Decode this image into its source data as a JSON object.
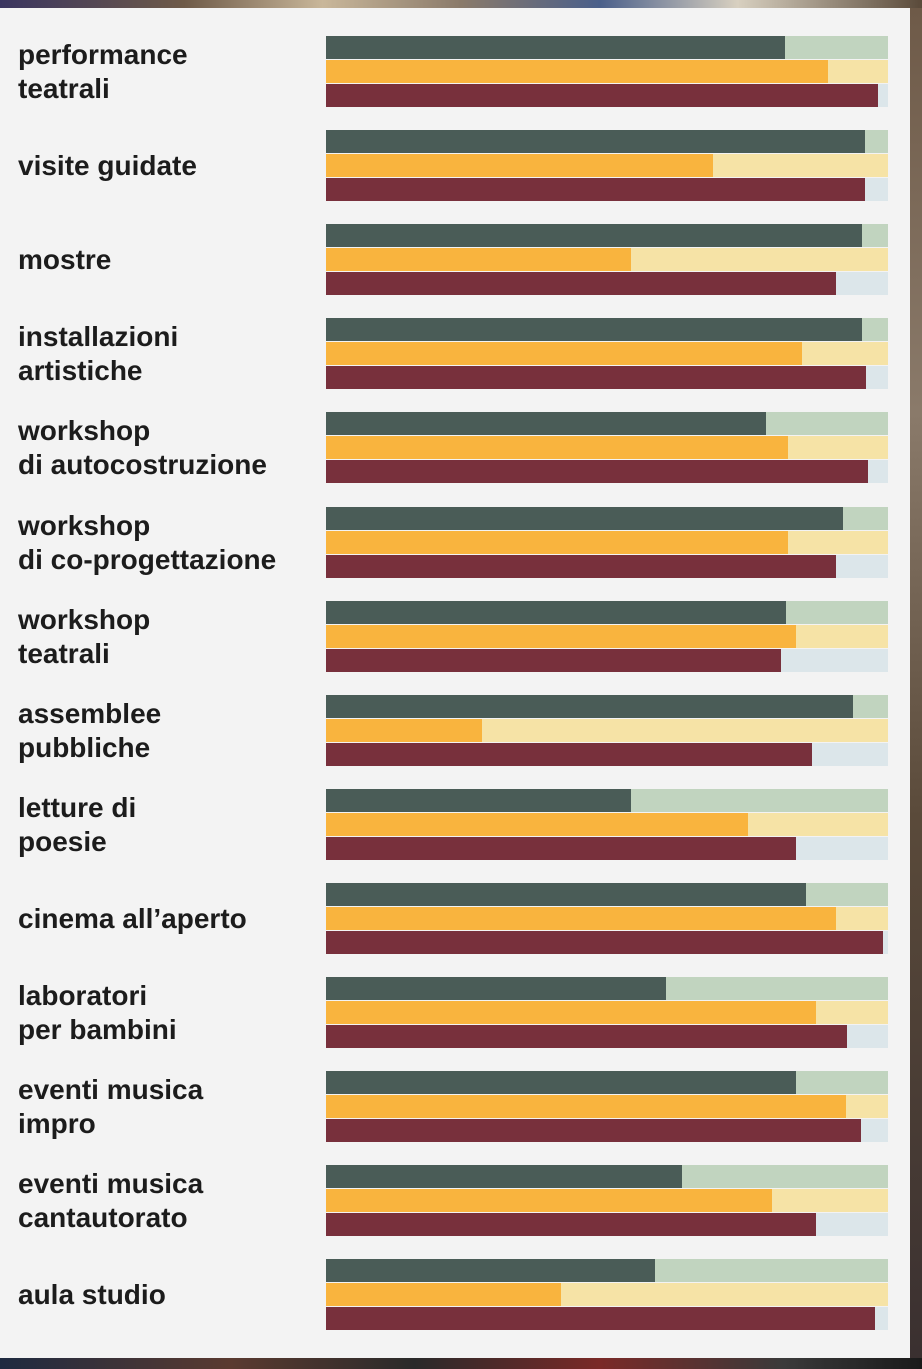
{
  "chart_data": {
    "type": "bar",
    "orientation": "horizontal",
    "stacked_to_full": true,
    "xlim": [
      0,
      100
    ],
    "categories": [
      "performance\nteatrali",
      "visite guidate",
      "mostre",
      "installazioni\nartistiche",
      "workshop\ndi autocostruzione",
      "workshop\ndi co-progettazione",
      "workshop\nteatrali",
      "assemblee\npubbliche",
      "letture di\npoesie",
      "cinema all’aperto",
      "laboratori\nper bambini",
      "eventi musica\nimpro",
      "eventi musica\ncantautorato",
      "aula studio"
    ],
    "series": [
      {
        "color": "#4a5c57",
        "remainder_color": "#c1d4bf",
        "values": [
          81.6,
          95.9,
          95.4,
          95.4,
          78.3,
          92.0,
          81.9,
          93.8,
          54.2,
          85.4,
          60.5,
          83.6,
          63.3,
          58.5
        ]
      },
      {
        "color": "#f9b43e",
        "remainder_color": "#f6e3a6",
        "values": [
          89.3,
          68.8,
          54.3,
          84.7,
          82.2,
          82.2,
          83.6,
          27.8,
          75.1,
          90.7,
          87.2,
          92.5,
          79.4,
          41.8
        ]
      },
      {
        "color": "#78303c",
        "remainder_color": "#dce6ea",
        "values": [
          98.2,
          95.9,
          90.7,
          96.1,
          96.4,
          90.7,
          81.0,
          86.5,
          83.6,
          99.1,
          92.7,
          95.2,
          87.2,
          97.7
        ]
      }
    ]
  }
}
